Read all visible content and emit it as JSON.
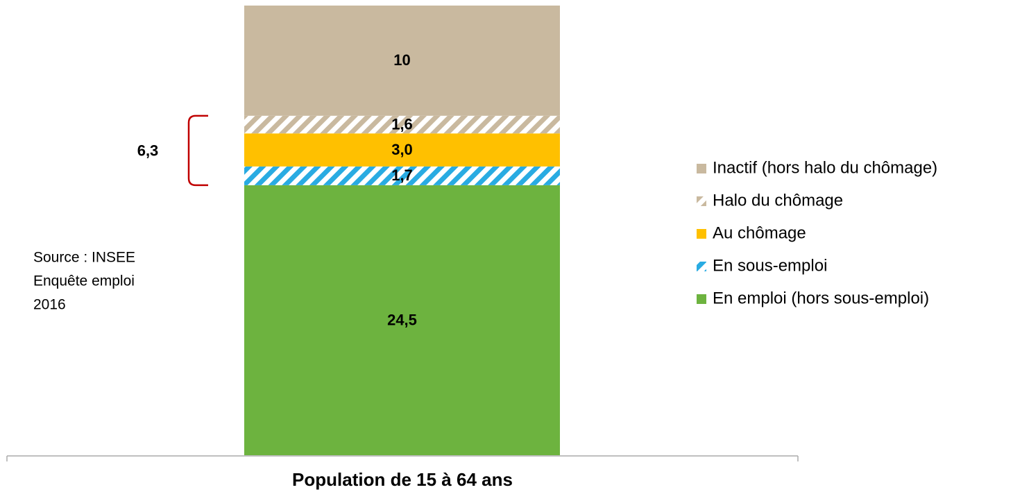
{
  "chart_data": {
    "type": "stacked_bar",
    "categories": [
      "Population de 15 à 64 ans"
    ],
    "series": [
      {
        "name": "En emploi (hors sous-emploi)",
        "color": "#6db33f",
        "values": [
          24.5
        ],
        "value_labels": [
          "24,5"
        ]
      },
      {
        "name": "En sous-emploi",
        "color": "#29abe2",
        "pattern": "hatch",
        "values": [
          1.7
        ],
        "value_labels": [
          "1,7"
        ]
      },
      {
        "name": "Au chômage",
        "color": "#ffc000",
        "values": [
          3.0
        ],
        "value_labels": [
          "3,0"
        ]
      },
      {
        "name": "Halo du chômage",
        "color": "#c9b99f",
        "pattern": "hatch",
        "values": [
          1.6
        ],
        "value_labels": [
          "1,6"
        ]
      },
      {
        "name": "Inactif (hors halo du chômage)",
        "color": "#c9b99f",
        "values": [
          10
        ]
      }
    ],
    "annotation": {
      "value": 6.3,
      "label": "6,3"
    },
    "note": [
      "Source : INSEE",
      "Enquête emploi",
      "2016"
    ],
    "legend": "right"
  }
}
